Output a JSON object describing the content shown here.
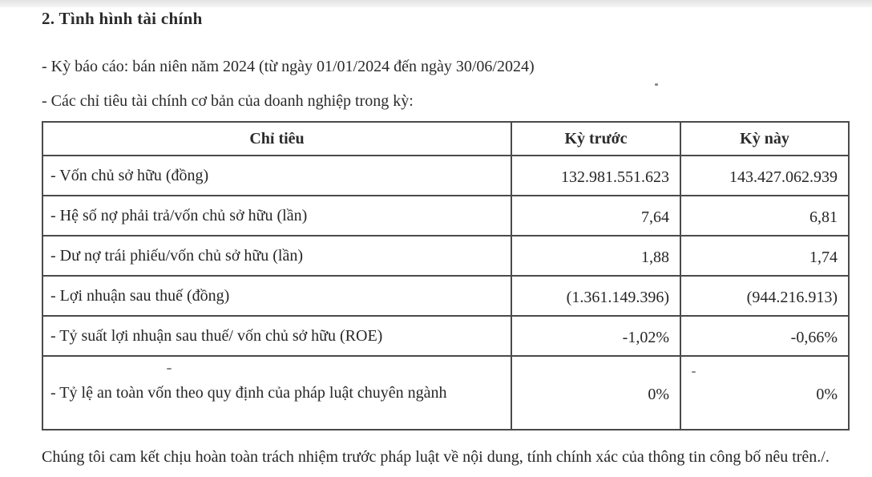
{
  "page": {
    "title": "2. Tình hình tài chính",
    "intro_lines": {
      "reporting_period": "- Kỳ báo cáo: bán niên năm 2024 (từ ngày 01/01/2024 đến ngày 30/06/2024)",
      "indicators_intro": "- Các chỉ tiêu tài chính cơ bản của doanh nghiệp trong kỳ:"
    }
  },
  "table": {
    "headers": [
      "Chỉ tiêu",
      "Kỳ trước",
      "Kỳ này"
    ],
    "rows": [
      {
        "label": "- Vốn chủ sở hữu (đồng)",
        "prev": "132.981.551.623",
        "current": "143.427.062.939"
      },
      {
        "label": "- Hệ số nợ phải trả/vốn chủ sở hữu (lần)",
        "prev": "7,64",
        "current": "6,81"
      },
      {
        "label": "- Dư nợ trái phiếu/vốn chủ sở hữu (lần)",
        "prev": "1,88",
        "current": "1,74"
      },
      {
        "label": "- Lợi nhuận sau thuế (đồng)",
        "prev": "(1.361.149.396)",
        "current": "(944.216.913)"
      },
      {
        "label": "- Tỷ suất lợi nhuận sau thuế/ vốn chủ sở hữu (ROE)",
        "prev": "-1,02%",
        "current": "-0,66%"
      },
      {
        "label": "- Tỷ lệ an toàn vốn theo quy định của pháp luật chuyên ngành",
        "prev": "0%",
        "current": "0%"
      }
    ]
  },
  "footer": {
    "commitment": "Chúng tôi cam kết chịu hoàn toàn trách nhiệm trước pháp luật về nội dung, tính chính xác của thông tin công bố nêu trên./."
  }
}
